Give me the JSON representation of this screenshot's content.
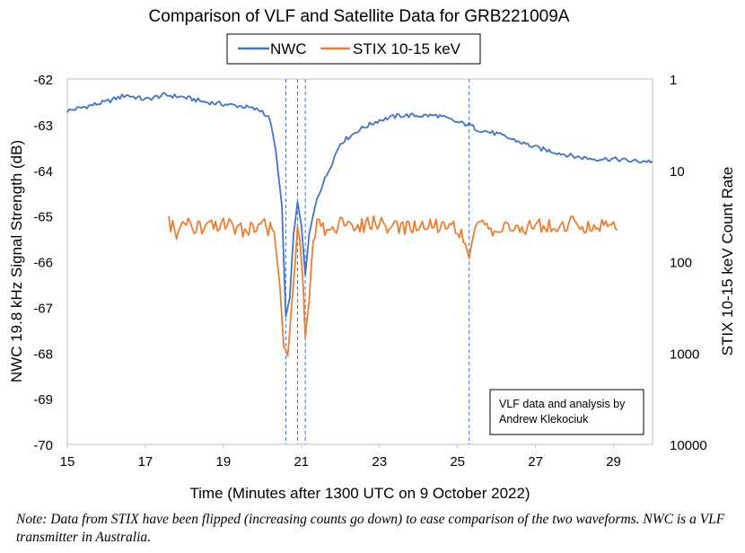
{
  "chart_data": {
    "type": "line",
    "title": "Comparison of VLF and Satellite Data for GRB221009A",
    "xlabel": "Time (Minutes after 1300 UTC on 9 October 2022)",
    "ylabel_left": "NWC 19.8 kHz Signal Strength (dB)",
    "ylabel_right": "STIX 10-15 keV Count Rate",
    "xlim": [
      15,
      30
    ],
    "ylim_left": [
      -70,
      -62
    ],
    "ylim_right": [
      10000,
      1
    ],
    "right_axis_scale": "log, inverted",
    "x_ticks": [
      "15",
      "17",
      "19",
      "21",
      "23",
      "25",
      "27",
      "29"
    ],
    "y_ticks_left": [
      "-62",
      "-63",
      "-64",
      "-65",
      "-66",
      "-67",
      "-68",
      "-69",
      "-70"
    ],
    "y_ticks_right": [
      "1",
      "10",
      "100",
      "1000",
      "10000"
    ],
    "legend": {
      "position": "top-center",
      "entries": [
        "NWC",
        "STIX 10-15 keV"
      ]
    },
    "annotation": "VLF data and analysis by Andrew Klekociuk",
    "vertical_markers": [
      20.6,
      20.9,
      21.1,
      25.3
    ],
    "series": [
      {
        "name": "NWC",
        "axis": "left",
        "color": "#4472C4",
        "x": [
          15,
          15.5,
          16,
          16.5,
          17,
          17.5,
          18,
          18.5,
          19,
          19.5,
          20,
          20.2,
          20.35,
          20.5,
          20.6,
          20.7,
          20.8,
          20.9,
          21,
          21.1,
          21.2,
          21.4,
          21.6,
          21.8,
          22,
          22.5,
          23,
          23.5,
          24,
          24.5,
          25,
          25.3,
          25.5,
          26,
          26.5,
          27,
          27.5,
          28,
          28.5,
          29,
          29.5,
          30
        ],
        "values": [
          -62.7,
          -62.6,
          -62.5,
          -62.35,
          -62.45,
          -62.35,
          -62.4,
          -62.5,
          -62.55,
          -62.6,
          -62.7,
          -62.9,
          -63.6,
          -64.8,
          -67.2,
          -66.8,
          -65.4,
          -64.7,
          -65.2,
          -66.3,
          -65.4,
          -64.6,
          -64.2,
          -63.8,
          -63.4,
          -63.1,
          -62.9,
          -62.8,
          -62.8,
          -62.8,
          -62.95,
          -63.0,
          -63.1,
          -63.2,
          -63.35,
          -63.5,
          -63.6,
          -63.7,
          -63.75,
          -63.75,
          -63.8,
          -63.8
        ]
      },
      {
        "name": "STIX 10-15 keV",
        "axis": "right",
        "color": "#ED7D31",
        "x": [
          17.6,
          17.8,
          18,
          18.5,
          19,
          19.5,
          20,
          20.3,
          20.45,
          20.55,
          20.65,
          20.75,
          20.9,
          20.95,
          21.05,
          21.1,
          21.2,
          21.3,
          21.4,
          21.6,
          22,
          22.5,
          23,
          23.5,
          24,
          24.5,
          25,
          25.2,
          25.3,
          25.4,
          25.6,
          26,
          26.5,
          27,
          27.5,
          28,
          28.5,
          29,
          29.1
        ],
        "values": [
          35,
          50,
          40,
          45,
          40,
          45,
          40,
          45,
          200,
          800,
          1100,
          300,
          45,
          50,
          200,
          700,
          250,
          55,
          40,
          45,
          40,
          40,
          38,
          45,
          40,
          40,
          42,
          60,
          90,
          55,
          40,
          45,
          42,
          40,
          42,
          38,
          42,
          38,
          45
        ]
      }
    ]
  }
}
